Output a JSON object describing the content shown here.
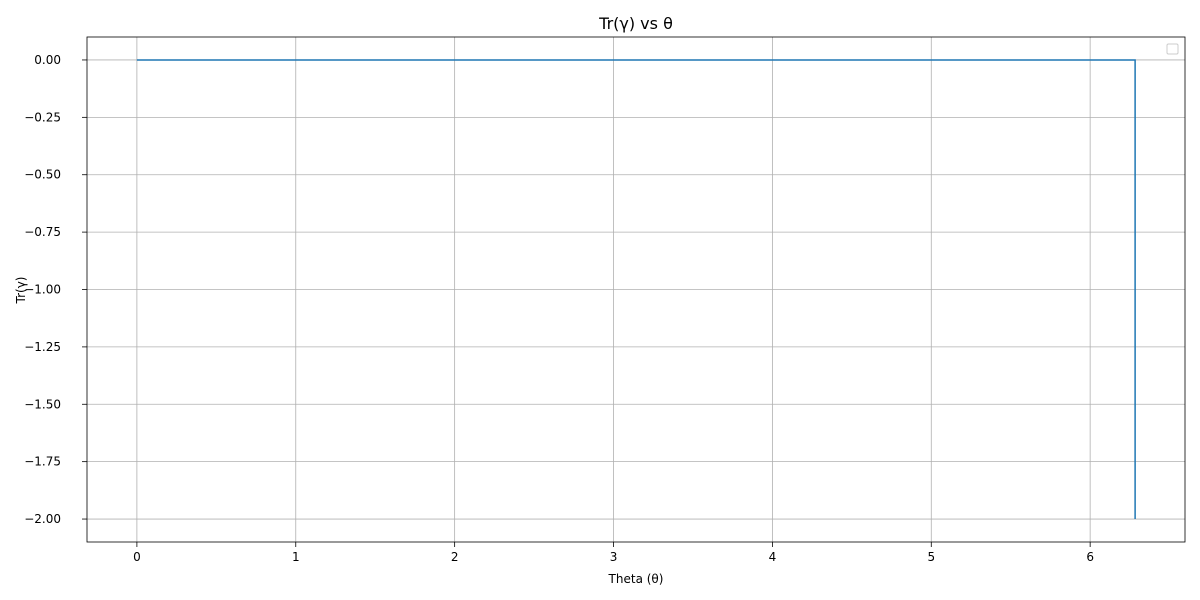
{
  "chart_data": {
    "type": "line",
    "title": "Tr(γ) vs θ",
    "xlabel": "Theta (θ)",
    "ylabel": "Tr(γ)",
    "xlim": [
      -0.314,
      6.597
    ],
    "ylim": [
      -2.1,
      0.1
    ],
    "xticks": [
      0,
      1,
      2,
      3,
      4,
      5,
      6
    ],
    "xtick_labels": [
      "0",
      "1",
      "2",
      "3",
      "4",
      "5",
      "6"
    ],
    "yticks": [
      0.0,
      -0.25,
      -0.5,
      -0.75,
      -1.0,
      -1.25,
      -1.5,
      -1.75,
      -2.0
    ],
    "ytick_labels": [
      "0.00",
      "−0.25",
      "−0.50",
      "−0.75",
      "−1.00",
      "−1.25",
      "−1.50",
      "−1.75",
      "−2.00"
    ],
    "grid": true,
    "legend": {
      "placement": "upper-right",
      "entries": []
    },
    "series": [
      {
        "color": "#1f77b4",
        "x": [
          0.0,
          0.5,
          1.0,
          1.5,
          2.0,
          2.094,
          2.5,
          3.0,
          3.5,
          4.0,
          4.189,
          4.5,
          5.0,
          5.5,
          6.0,
          6.283,
          6.283
        ],
        "y": [
          0.0,
          0.0,
          0.0,
          0.0,
          0.0,
          0.0,
          0.0,
          0.0,
          0.0,
          0.0,
          0.0,
          0.0,
          0.0,
          0.0,
          0.0,
          0.0,
          -2.0
        ]
      }
    ]
  }
}
